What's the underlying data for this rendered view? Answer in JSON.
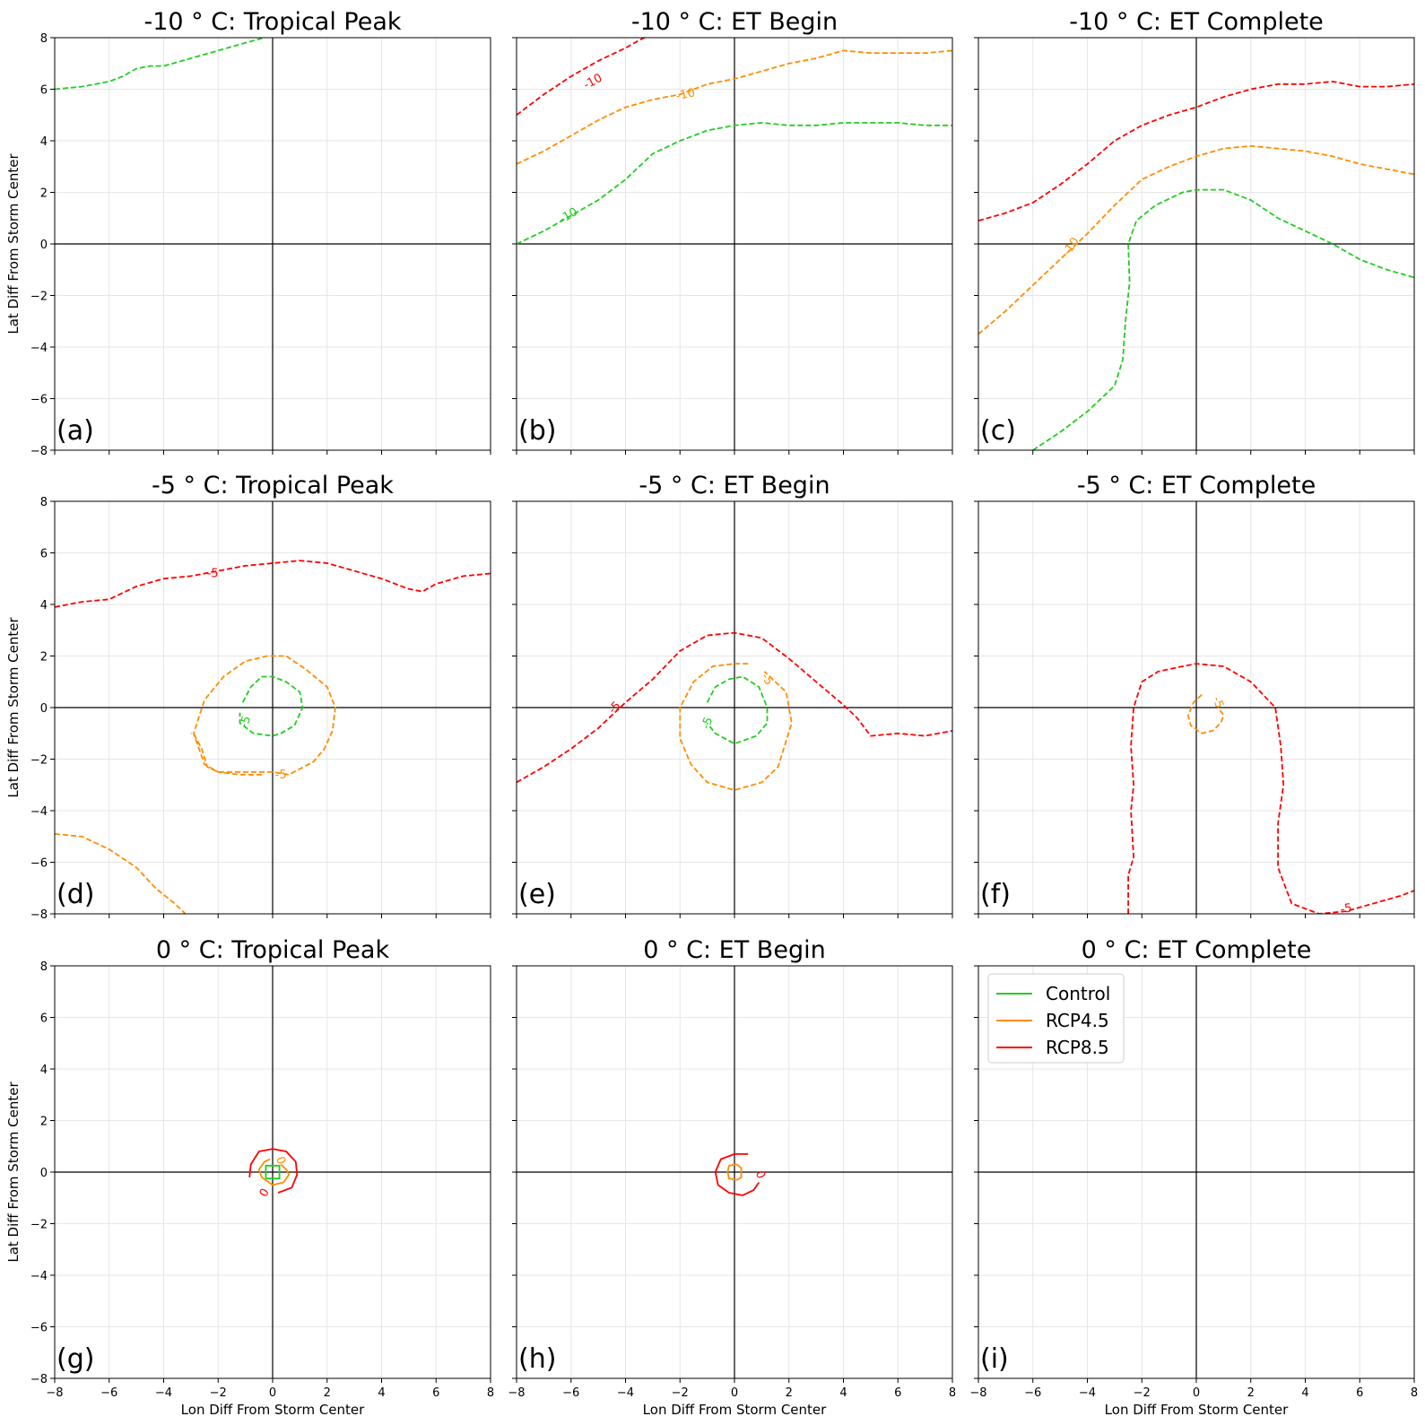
{
  "figure": {
    "xlabel": "Lon Diff From Storm Center",
    "ylabel": "Lat Diff From Storm Center",
    "xticks": [
      -8,
      -6,
      -4,
      -2,
      0,
      2,
      4,
      6,
      8
    ],
    "yticks": [
      -8,
      -6,
      -4,
      -2,
      0,
      2,
      4,
      6,
      8
    ],
    "xticklabels": [
      "−8",
      "−6",
      "−4",
      "−2",
      "0",
      "2",
      "4",
      "6",
      "8"
    ],
    "yticklabels": [
      "−8",
      "−6",
      "−4",
      "−2",
      "0",
      "2",
      "4",
      "6",
      "8"
    ],
    "legend": {
      "placement": "upper-left of panel (i)",
      "entries": [
        {
          "label": "Control",
          "color": "#22cc22"
        },
        {
          "label": "RCP4.5",
          "color": "#ff8c00"
        },
        {
          "label": "RCP8.5",
          "color": "#ff0000"
        }
      ]
    }
  },
  "colors": {
    "Control": "#22cc22",
    "RCP4.5": "#ff8c00",
    "RCP8.5": "#ff0000",
    "grid": "#e6e6e6",
    "axes": "#000000"
  },
  "chart_data": [
    {
      "type": "line",
      "id": "a",
      "panel_label": "(a)",
      "title": "-10 ° C: Tropical Peak",
      "xlim": [
        -8,
        8
      ],
      "ylim": [
        -8,
        8
      ],
      "grid": true,
      "dashed": true,
      "series": [
        {
          "name": "Control",
          "x": [
            -8,
            -7,
            -6,
            -5.5,
            -5,
            -4.5,
            -4,
            -3,
            -2,
            -1,
            -0.3
          ],
          "y": [
            6.0,
            6.1,
            6.3,
            6.5,
            6.8,
            6.9,
            6.9,
            7.2,
            7.5,
            7.8,
            8.0
          ]
        }
      ],
      "labels": []
    },
    {
      "type": "line",
      "id": "b",
      "panel_label": "(b)",
      "title": "-10 ° C: ET Begin",
      "xlim": [
        -8,
        8
      ],
      "ylim": [
        -8,
        8
      ],
      "grid": true,
      "dashed": true,
      "series": [
        {
          "name": "RCP8.5",
          "x": [
            -8,
            -7,
            -6,
            -5,
            -4,
            -3.5,
            -3.3
          ],
          "y": [
            5.0,
            5.8,
            6.5,
            7.1,
            7.6,
            7.9,
            8.0
          ]
        },
        {
          "name": "RCP4.5",
          "x": [
            -8,
            -7,
            -6,
            -5,
            -4,
            -3,
            -2,
            -1,
            0,
            1,
            2,
            3,
            4,
            5,
            6,
            7,
            8
          ],
          "y": [
            3.1,
            3.6,
            4.2,
            4.8,
            5.3,
            5.6,
            5.8,
            6.2,
            6.4,
            6.7,
            7.0,
            7.2,
            7.5,
            7.4,
            7.4,
            7.4,
            7.5
          ]
        },
        {
          "name": "Control",
          "x": [
            -8,
            -7,
            -6,
            -5,
            -4,
            -3,
            -2,
            -1,
            0,
            1,
            2,
            3,
            4,
            5,
            6,
            7,
            8
          ],
          "y": [
            0.0,
            0.5,
            1.1,
            1.7,
            2.5,
            3.5,
            4.0,
            4.4,
            4.6,
            4.7,
            4.6,
            4.6,
            4.7,
            4.7,
            4.7,
            4.6,
            4.6
          ]
        }
      ],
      "labels": [
        {
          "text": "-10",
          "x": -5.2,
          "y": 6.3,
          "rotate": -28,
          "series": "RCP8.5"
        },
        {
          "text": "-10",
          "x": -1.8,
          "y": 5.8,
          "rotate": -12,
          "series": "RCP4.5"
        },
        {
          "text": "-10",
          "x": -6.1,
          "y": 1.1,
          "rotate": -30,
          "series": "Control"
        }
      ]
    },
    {
      "type": "line",
      "id": "c",
      "panel_label": "(c)",
      "title": "-10 ° C: ET Complete",
      "xlim": [
        -8,
        8
      ],
      "ylim": [
        -8,
        8
      ],
      "grid": true,
      "dashed": true,
      "series": [
        {
          "name": "RCP8.5",
          "x": [
            -8,
            -7,
            -6,
            -5,
            -4,
            -3,
            -2,
            -1,
            0,
            1,
            2,
            3,
            4,
            5,
            6,
            7,
            8
          ],
          "y": [
            0.9,
            1.2,
            1.6,
            2.3,
            3.1,
            4.0,
            4.6,
            5.0,
            5.3,
            5.7,
            6.0,
            6.2,
            6.2,
            6.3,
            6.1,
            6.1,
            6.2
          ]
        },
        {
          "name": "RCP4.5",
          "x": [
            -8,
            -7,
            -6,
            -5,
            -4,
            -3,
            -2,
            -1,
            0,
            1,
            2,
            3,
            4,
            5,
            6,
            7,
            8
          ],
          "y": [
            -3.5,
            -2.6,
            -1.6,
            -0.6,
            0.4,
            1.5,
            2.5,
            3.0,
            3.4,
            3.7,
            3.8,
            3.7,
            3.6,
            3.4,
            3.1,
            2.9,
            2.7
          ]
        },
        {
          "name": "Control",
          "x": [
            -6.0,
            -5,
            -4,
            -3,
            -2.7,
            -2.6,
            -2.45,
            -2.5,
            -2.2,
            -1.5,
            -0.5,
            0,
            1,
            2,
            3,
            4,
            5,
            6,
            7,
            8
          ],
          "y": [
            -8.0,
            -7.3,
            -6.5,
            -5.5,
            -4.5,
            -3.0,
            -1.5,
            0.0,
            0.9,
            1.5,
            2.0,
            2.1,
            2.1,
            1.7,
            1.0,
            0.5,
            0.0,
            -0.6,
            -1.0,
            -1.3
          ]
        }
      ],
      "labels": [
        {
          "text": "-10",
          "x": -4.6,
          "y": -0.1,
          "rotate": -55,
          "series": "RCP4.5"
        }
      ]
    },
    {
      "type": "line",
      "id": "d",
      "panel_label": "(d)",
      "title": "-5 ° C: Tropical Peak",
      "xlim": [
        -8,
        8
      ],
      "ylim": [
        -8,
        8
      ],
      "grid": true,
      "dashed": true,
      "series": [
        {
          "name": "RCP8.5",
          "x": [
            -8,
            -7,
            -6,
            -5,
            -4,
            -3,
            -2,
            -1,
            0,
            1,
            2,
            3,
            4,
            5,
            5.5,
            6,
            7,
            8
          ],
          "y": [
            3.9,
            4.1,
            4.2,
            4.7,
            5.0,
            5.1,
            5.3,
            5.5,
            5.6,
            5.7,
            5.6,
            5.3,
            5.0,
            4.6,
            4.5,
            4.8,
            5.1,
            5.2
          ]
        },
        {
          "name": "RCP4.5",
          "x": [
            -0.4,
            -1.2,
            -2.0,
            -2.5,
            -2.9,
            -2.5,
            -1.8,
            -1.0,
            -0.2,
            0.5,
            1.2,
            2.0,
            2.3,
            2.2,
            1.9,
            1.5,
            0.6,
            0.0,
            -1.0,
            -2.0,
            -2.4,
            -2.6,
            -2.9,
            -3.0
          ],
          "y": [
            -2.6,
            -2.6,
            -2.5,
            -2.2,
            -1.0,
            0.3,
            1.2,
            1.8,
            2.0,
            2.0,
            1.5,
            0.8,
            0.0,
            -0.9,
            -1.6,
            -2.1,
            -2.6,
            -2.5,
            -2.5,
            -2.5,
            -2.3,
            -1.6,
            -1.0,
            -1.0
          ]
        },
        {
          "name": "Control",
          "x": [
            -1.1,
            -0.8,
            -0.4,
            0.0,
            0.5,
            1.0,
            1.1,
            0.8,
            0.3,
            0.0,
            -0.7,
            -1.2,
            -1.2
          ],
          "y": [
            0.2,
            0.8,
            1.2,
            1.2,
            1.0,
            0.6,
            0.0,
            -0.7,
            -1.0,
            -1.1,
            -1.0,
            -0.6,
            -0.2
          ]
        },
        {
          "name": "RCP4.5",
          "x": [
            -8,
            -7,
            -6,
            -5,
            -4.3,
            -3.6,
            -3.2
          ],
          "y": [
            -4.9,
            -5.0,
            -5.5,
            -6.2,
            -7.0,
            -7.6,
            -8.0
          ]
        }
      ],
      "labels": [
        {
          "text": "-5",
          "x": -2.2,
          "y": 5.2,
          "rotate": 0,
          "series": "RCP8.5"
        },
        {
          "text": "-5",
          "x": 0.3,
          "y": -2.6,
          "rotate": 0,
          "series": "RCP4.5"
        },
        {
          "text": "-5",
          "x": -1.0,
          "y": -0.55,
          "rotate": -70,
          "series": "Control"
        }
      ]
    },
    {
      "type": "line",
      "id": "e",
      "panel_label": "(e)",
      "title": "-5 ° C: ET Begin",
      "xlim": [
        -8,
        8
      ],
      "ylim": [
        -8,
        8
      ],
      "grid": true,
      "dashed": true,
      "series": [
        {
          "name": "RCP8.5",
          "x": [
            -8,
            -7,
            -6,
            -5,
            -4,
            -3,
            -2,
            -1,
            0,
            1,
            2,
            3,
            4,
            4.5,
            5,
            6,
            7,
            8
          ],
          "y": [
            -2.9,
            -2.3,
            -1.6,
            -0.8,
            0.2,
            1.1,
            2.2,
            2.8,
            2.9,
            2.7,
            1.9,
            1.0,
            0.1,
            -0.4,
            -1.1,
            -1.0,
            -1.1,
            -0.9
          ]
        },
        {
          "name": "RCP4.5",
          "x": [
            0.5,
            0.0,
            -0.8,
            -1.5,
            -2.0,
            -2.0,
            -1.6,
            -1.0,
            0.0,
            1.0,
            1.6,
            2.1,
            1.9,
            1.3,
            1.1
          ],
          "y": [
            1.7,
            1.7,
            1.6,
            1.0,
            0.0,
            -1.2,
            -2.2,
            -2.9,
            -3.2,
            -2.9,
            -2.3,
            -0.6,
            0.6,
            1.2,
            1.4
          ]
        },
        {
          "name": "Control",
          "x": [
            -1.0,
            -0.7,
            -0.2,
            0.3,
            0.9,
            1.2,
            1.2,
            0.8,
            0.0,
            -0.7,
            -1.0
          ],
          "y": [
            0.2,
            0.8,
            1.1,
            1.2,
            0.8,
            0.0,
            -0.6,
            -1.1,
            -1.4,
            -1.0,
            -0.6
          ]
        }
      ],
      "labels": [
        {
          "text": "-5",
          "x": -4.4,
          "y": 0.0,
          "rotate": -45,
          "series": "RCP8.5"
        },
        {
          "text": "-5",
          "x": 1.2,
          "y": 1.1,
          "rotate": 60,
          "series": "RCP4.5"
        },
        {
          "text": "-5",
          "x": -1.0,
          "y": -0.6,
          "rotate": -70,
          "series": "Control"
        }
      ]
    },
    {
      "type": "line",
      "id": "f",
      "panel_label": "(f)",
      "title": "-5 ° C: ET Complete",
      "xlim": [
        -8,
        8
      ],
      "ylim": [
        -8,
        8
      ],
      "grid": true,
      "dashed": true,
      "series": [
        {
          "name": "RCP8.5",
          "x": [
            -2.5,
            -2.5,
            -2.3,
            -2.4,
            -2.3,
            -2.4,
            -2.3,
            -2.0,
            -1.4,
            -0.5,
            0.0,
            1.0,
            2.0,
            2.9,
            3.1,
            3.2,
            3.0,
            3.0,
            3.5,
            4.5,
            5.5,
            6.5,
            7.5,
            8.0
          ],
          "y": [
            -8.0,
            -6.5,
            -5.8,
            -4.0,
            -3.0,
            -1.5,
            0.0,
            1.0,
            1.4,
            1.6,
            1.7,
            1.6,
            1.0,
            0.0,
            -1.5,
            -3.0,
            -4.5,
            -6.2,
            -7.6,
            -8.0,
            -7.9,
            -7.6,
            -7.3,
            -7.1
          ]
        },
        {
          "name": "RCP4.5",
          "x": [
            0.2,
            -0.1,
            -0.3,
            -0.2,
            0.2,
            0.6,
            0.9,
            1.0,
            0.8
          ],
          "y": [
            0.5,
            0.2,
            -0.3,
            -0.7,
            -1.0,
            -0.9,
            -0.6,
            -0.3,
            0.0
          ]
        }
      ],
      "labels": [
        {
          "text": "-5",
          "x": 5.5,
          "y": -7.8,
          "rotate": -10,
          "series": "RCP8.5"
        },
        {
          "text": "-5",
          "x": 0.8,
          "y": 0.2,
          "rotate": 70,
          "series": "RCP4.5"
        }
      ]
    },
    {
      "type": "line",
      "id": "g",
      "panel_label": "(g)",
      "title": "0 ° C: Tropical Peak",
      "xlim": [
        -8,
        8
      ],
      "ylim": [
        -8,
        8
      ],
      "grid": true,
      "dashed": false,
      "series": [
        {
          "name": "RCP8.5",
          "x": [
            -0.85,
            -0.8,
            -0.5,
            0.0,
            0.5,
            0.85,
            0.9,
            0.7,
            0.2
          ],
          "y": [
            -0.2,
            0.3,
            0.8,
            0.9,
            0.8,
            0.4,
            -0.1,
            -0.6,
            -0.8
          ]
        },
        {
          "name": "RCP4.5",
          "x": [
            -0.1,
            -0.3,
            -0.5,
            -0.4,
            0.0,
            0.4,
            0.6,
            0.5,
            0.3
          ],
          "y": [
            0.5,
            0.4,
            0.1,
            -0.2,
            -0.5,
            -0.4,
            -0.1,
            0.1,
            0.3
          ]
        },
        {
          "name": "Control",
          "x": [
            -0.25,
            0.25,
            0.25,
            -0.25,
            -0.25
          ],
          "y": [
            -0.25,
            -0.25,
            0.25,
            0.25,
            -0.25
          ]
        }
      ],
      "labels": [
        {
          "text": "0",
          "x": -0.3,
          "y": -0.8,
          "rotate": -60,
          "series": "RCP8.5"
        },
        {
          "text": "0",
          "x": 0.3,
          "y": 0.45,
          "rotate": 70,
          "series": "RCP4.5"
        }
      ]
    },
    {
      "type": "line",
      "id": "h",
      "panel_label": "(h)",
      "title": "0 ° C: ET Begin",
      "xlim": [
        -8,
        8
      ],
      "ylim": [
        -8,
        8
      ],
      "grid": true,
      "dashed": false,
      "series": [
        {
          "name": "RCP8.5",
          "x": [
            0.5,
            0.0,
            -0.5,
            -0.7,
            -0.6,
            -0.2,
            0.3,
            0.7,
            0.9
          ],
          "y": [
            0.7,
            0.7,
            0.5,
            0.0,
            -0.5,
            -0.8,
            -0.9,
            -0.7,
            -0.4
          ]
        },
        {
          "name": "RCP4.5",
          "x": [
            0.1,
            -0.2,
            -0.25,
            -0.2,
            0.1,
            0.25,
            0.25,
            0.1
          ],
          "y": [
            0.3,
            0.25,
            0.0,
            -0.25,
            -0.3,
            -0.2,
            0.15,
            0.3
          ]
        }
      ],
      "labels": [
        {
          "text": "0",
          "x": 0.95,
          "y": -0.1,
          "rotate": 70,
          "series": "RCP8.5"
        }
      ]
    },
    {
      "type": "line",
      "id": "i",
      "panel_label": "(i)",
      "title": "0 ° C: ET Complete",
      "xlim": [
        -8,
        8
      ],
      "ylim": [
        -8,
        8
      ],
      "grid": true,
      "dashed": false,
      "series": [],
      "labels": [],
      "legend": true
    }
  ]
}
